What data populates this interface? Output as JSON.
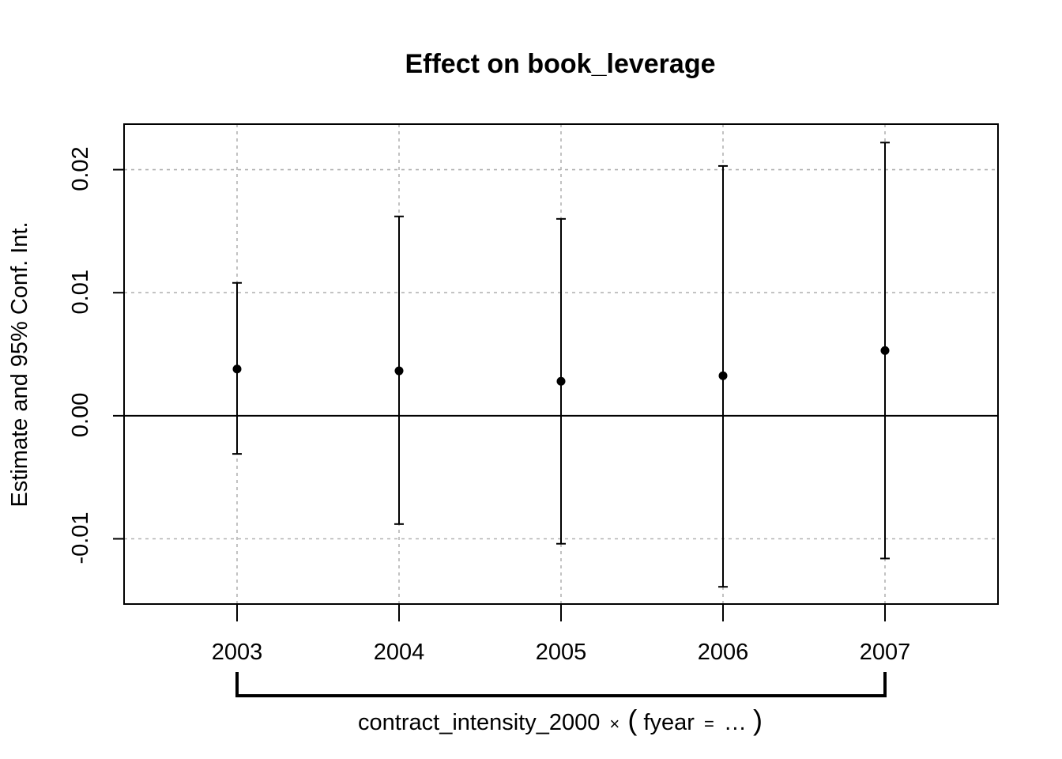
{
  "chart_data": {
    "type": "scatter",
    "subtype": "coefficient-plot-with-confidence-intervals",
    "title": "Effect on book_leverage",
    "ylabel": "Estimate and 95% Conf. Int.",
    "xlabel_parts": {
      "variable": "contract_intensity_2000",
      "times": "×",
      "open_paren": "(",
      "group": "fyear",
      "equals": "=",
      "ellipsis": "…",
      "close_paren": ")"
    },
    "categories": [
      "2003",
      "2004",
      "2005",
      "2006",
      "2007"
    ],
    "estimates": [
      0.0038,
      0.00365,
      0.0028,
      0.00325,
      0.0053
    ],
    "ci_lower": [
      -0.0031,
      -0.0088,
      -0.0104,
      -0.0139,
      -0.0116
    ],
    "ci_upper": [
      0.0108,
      0.0162,
      0.016,
      0.0203,
      0.0222
    ],
    "y_ticks": [
      "-0.01",
      "0.00",
      "0.01",
      "0.02"
    ],
    "y_tick_values": [
      -0.01,
      0.0,
      0.01,
      0.02
    ],
    "ylim": [
      -0.0153,
      0.0237
    ],
    "reference_line": 0.0,
    "grid": true,
    "colors": {
      "points": "#000000",
      "grid": "#b3b3b3",
      "background": "#ffffff"
    }
  }
}
